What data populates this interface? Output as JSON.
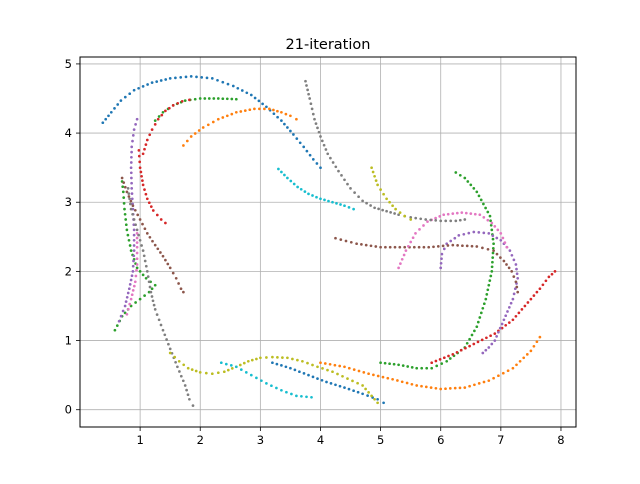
{
  "chart_data": {
    "type": "scatter",
    "title": "21-iteration",
    "xlabel": "",
    "ylabel": "",
    "xlim": [
      0.0,
      8.25
    ],
    "ylim": [
      -0.25,
      5.1
    ],
    "xticks": [
      1,
      2,
      3,
      4,
      5,
      6,
      7,
      8
    ],
    "yticks": [
      0,
      1,
      2,
      3,
      4,
      5
    ],
    "grid": true,
    "legend": "none",
    "marker_size": 2.2,
    "series": [
      {
        "color": "#1f77b4",
        "points": [
          [
            0.38,
            4.15
          ],
          [
            0.52,
            4.3
          ],
          [
            0.68,
            4.47
          ],
          [
            0.9,
            4.62
          ],
          [
            1.2,
            4.73
          ],
          [
            1.5,
            4.79
          ],
          [
            1.85,
            4.82
          ],
          [
            2.2,
            4.79
          ],
          [
            2.55,
            4.68
          ],
          [
            2.85,
            4.55
          ],
          [
            3.1,
            4.38
          ],
          [
            3.35,
            4.18
          ],
          [
            3.55,
            3.98
          ],
          [
            3.72,
            3.8
          ],
          [
            3.88,
            3.62
          ],
          [
            4.0,
            3.5
          ]
        ]
      },
      {
        "color": "#1f77b4",
        "points": [
          [
            3.2,
            0.68
          ],
          [
            3.5,
            0.6
          ],
          [
            3.8,
            0.5
          ],
          [
            4.1,
            0.4
          ],
          [
            4.4,
            0.32
          ],
          [
            4.7,
            0.23
          ],
          [
            4.95,
            0.15
          ],
          [
            5.05,
            0.1
          ]
        ]
      },
      {
        "color": "#ff7f0e",
        "points": [
          [
            1.72,
            3.82
          ],
          [
            1.85,
            3.95
          ],
          [
            2.05,
            4.08
          ],
          [
            2.3,
            4.2
          ],
          [
            2.6,
            4.3
          ],
          [
            2.9,
            4.35
          ],
          [
            3.15,
            4.35
          ],
          [
            3.35,
            4.3
          ],
          [
            3.5,
            4.25
          ],
          [
            3.6,
            4.2
          ]
        ]
      },
      {
        "color": "#ff7f0e",
        "points": [
          [
            4.0,
            0.68
          ],
          [
            4.4,
            0.62
          ],
          [
            4.8,
            0.52
          ],
          [
            5.2,
            0.44
          ],
          [
            5.6,
            0.35
          ],
          [
            6.0,
            0.3
          ],
          [
            6.4,
            0.32
          ],
          [
            6.8,
            0.42
          ],
          [
            7.2,
            0.6
          ],
          [
            7.5,
            0.85
          ],
          [
            7.65,
            1.05
          ]
        ]
      },
      {
        "color": "#2ca02c",
        "points": [
          [
            1.25,
            4.18
          ],
          [
            1.38,
            4.3
          ],
          [
            1.55,
            4.4
          ],
          [
            1.75,
            4.47
          ],
          [
            2.0,
            4.5
          ],
          [
            2.3,
            4.5
          ],
          [
            2.6,
            4.49
          ]
        ]
      },
      {
        "color": "#2ca02c",
        "points": [
          [
            0.58,
            1.15
          ],
          [
            0.7,
            1.35
          ],
          [
            0.85,
            1.5
          ],
          [
            1.0,
            1.6
          ],
          [
            1.15,
            1.7
          ],
          [
            1.25,
            1.8
          ],
          [
            1.1,
            1.9
          ],
          [
            0.95,
            2.05
          ],
          [
            0.85,
            2.3
          ],
          [
            0.78,
            2.6
          ],
          [
            0.74,
            2.9
          ],
          [
            0.72,
            3.15
          ],
          [
            0.7,
            3.3
          ]
        ]
      },
      {
        "color": "#2ca02c",
        "points": [
          [
            5.0,
            0.68
          ],
          [
            5.3,
            0.65
          ],
          [
            5.6,
            0.6
          ],
          [
            5.85,
            0.6
          ],
          [
            6.1,
            0.7
          ],
          [
            6.4,
            0.9
          ],
          [
            6.6,
            1.2
          ],
          [
            6.75,
            1.6
          ],
          [
            6.85,
            2.0
          ],
          [
            6.88,
            2.4
          ],
          [
            6.82,
            2.8
          ],
          [
            6.6,
            3.15
          ],
          [
            6.4,
            3.35
          ],
          [
            6.25,
            3.43
          ]
        ]
      },
      {
        "color": "#d62728",
        "points": [
          [
            1.05,
            3.7
          ],
          [
            1.12,
            3.9
          ],
          [
            1.2,
            4.05
          ],
          [
            1.3,
            4.2
          ],
          [
            1.42,
            4.32
          ],
          [
            1.55,
            4.4
          ],
          [
            1.7,
            4.46
          ],
          [
            1.82,
            4.48
          ]
        ]
      },
      {
        "color": "#d62728",
        "points": [
          [
            0.98,
            3.75
          ],
          [
            1.0,
            3.5
          ],
          [
            1.05,
            3.25
          ],
          [
            1.12,
            3.05
          ],
          [
            1.22,
            2.88
          ],
          [
            1.35,
            2.75
          ],
          [
            1.42,
            2.7
          ]
        ]
      },
      {
        "color": "#d62728",
        "points": [
          [
            5.85,
            0.68
          ],
          [
            6.2,
            0.8
          ],
          [
            6.55,
            0.95
          ],
          [
            6.9,
            1.1
          ],
          [
            7.2,
            1.3
          ],
          [
            7.45,
            1.55
          ],
          [
            7.65,
            1.75
          ],
          [
            7.8,
            1.92
          ],
          [
            7.9,
            2.0
          ]
        ]
      },
      {
        "color": "#9467bd",
        "points": [
          [
            0.65,
            1.28
          ],
          [
            0.75,
            1.5
          ],
          [
            0.82,
            1.75
          ],
          [
            0.88,
            2.0
          ],
          [
            0.9,
            2.3
          ],
          [
            0.9,
            2.6
          ],
          [
            0.88,
            2.9
          ],
          [
            0.86,
            3.2
          ],
          [
            0.85,
            3.5
          ],
          [
            0.86,
            3.8
          ],
          [
            0.9,
            4.05
          ],
          [
            0.95,
            4.2
          ]
        ]
      },
      {
        "color": "#9467bd",
        "points": [
          [
            6.0,
            2.05
          ],
          [
            6.02,
            2.25
          ],
          [
            6.1,
            2.4
          ],
          [
            6.3,
            2.52
          ],
          [
            6.55,
            2.57
          ],
          [
            6.8,
            2.55
          ],
          [
            7.0,
            2.45
          ],
          [
            7.15,
            2.3
          ],
          [
            7.25,
            2.1
          ],
          [
            7.28,
            1.9
          ],
          [
            7.2,
            1.6
          ],
          [
            7.05,
            1.3
          ],
          [
            6.9,
            1.0
          ],
          [
            6.8,
            0.9
          ],
          [
            6.7,
            0.82
          ]
        ]
      },
      {
        "color": "#8c564b",
        "points": [
          [
            0.7,
            3.35
          ],
          [
            0.78,
            3.15
          ],
          [
            0.88,
            2.95
          ],
          [
            1.0,
            2.75
          ],
          [
            1.12,
            2.55
          ],
          [
            1.25,
            2.38
          ],
          [
            1.38,
            2.22
          ],
          [
            1.5,
            2.05
          ],
          [
            1.6,
            1.9
          ],
          [
            1.68,
            1.75
          ],
          [
            1.72,
            1.7
          ]
        ]
      },
      {
        "color": "#8c564b",
        "points": [
          [
            4.25,
            2.48
          ],
          [
            4.6,
            2.4
          ],
          [
            5.0,
            2.35
          ],
          [
            5.4,
            2.35
          ],
          [
            5.8,
            2.35
          ],
          [
            6.2,
            2.38
          ],
          [
            6.6,
            2.36
          ],
          [
            6.88,
            2.3
          ],
          [
            7.05,
            2.15
          ],
          [
            7.18,
            2.0
          ],
          [
            7.25,
            1.85
          ],
          [
            7.28,
            1.7
          ]
        ]
      },
      {
        "color": "#e377c2",
        "points": [
          [
            0.78,
            1.38
          ],
          [
            0.85,
            1.6
          ],
          [
            0.92,
            1.85
          ],
          [
            0.95,
            2.1
          ],
          [
            0.95,
            2.35
          ],
          [
            0.95,
            2.55
          ]
        ]
      },
      {
        "color": "#e377c2",
        "points": [
          [
            5.3,
            2.05
          ],
          [
            5.42,
            2.3
          ],
          [
            5.58,
            2.55
          ],
          [
            5.78,
            2.72
          ],
          [
            6.05,
            2.82
          ],
          [
            6.35,
            2.85
          ],
          [
            6.65,
            2.82
          ],
          [
            6.85,
            2.7
          ],
          [
            7.0,
            2.55
          ],
          [
            7.1,
            2.35
          ]
        ]
      },
      {
        "color": "#7f7f7f",
        "points": [
          [
            3.75,
            4.75
          ],
          [
            3.82,
            4.5
          ],
          [
            3.9,
            4.2
          ],
          [
            4.0,
            3.95
          ],
          [
            4.12,
            3.7
          ],
          [
            4.3,
            3.45
          ],
          [
            4.5,
            3.2
          ],
          [
            4.7,
            3.02
          ],
          [
            4.9,
            2.92
          ],
          [
            5.1,
            2.87
          ],
          [
            5.3,
            2.82
          ],
          [
            5.5,
            2.78
          ],
          [
            5.75,
            2.75
          ],
          [
            6.0,
            2.73
          ],
          [
            6.25,
            2.73
          ],
          [
            6.4,
            2.75
          ]
        ]
      },
      {
        "color": "#7f7f7f",
        "points": [
          [
            0.8,
            3.2
          ],
          [
            0.85,
            2.9
          ],
          [
            0.95,
            2.6
          ],
          [
            1.05,
            2.3
          ],
          [
            1.12,
            2.0
          ],
          [
            1.18,
            1.7
          ],
          [
            1.25,
            1.45
          ],
          [
            1.38,
            1.15
          ],
          [
            1.5,
            0.88
          ],
          [
            1.62,
            0.62
          ],
          [
            1.75,
            0.35
          ],
          [
            1.82,
            0.15
          ],
          [
            1.88,
            0.06
          ]
        ]
      },
      {
        "color": "#bcbd22",
        "points": [
          [
            4.85,
            3.5
          ],
          [
            4.95,
            3.25
          ],
          [
            5.1,
            3.05
          ],
          [
            5.25,
            2.9
          ],
          [
            5.4,
            2.8
          ],
          [
            5.5,
            2.75
          ]
        ]
      },
      {
        "color": "#bcbd22",
        "points": [
          [
            1.5,
            0.82
          ],
          [
            1.65,
            0.7
          ],
          [
            1.8,
            0.6
          ],
          [
            2.0,
            0.54
          ],
          [
            2.2,
            0.52
          ],
          [
            2.4,
            0.55
          ],
          [
            2.6,
            0.62
          ],
          [
            2.8,
            0.7
          ],
          [
            3.0,
            0.75
          ],
          [
            3.2,
            0.76
          ],
          [
            3.45,
            0.75
          ],
          [
            3.7,
            0.7
          ],
          [
            3.95,
            0.62
          ],
          [
            4.2,
            0.55
          ],
          [
            4.45,
            0.45
          ],
          [
            4.7,
            0.35
          ],
          [
            4.85,
            0.2
          ],
          [
            4.95,
            0.1
          ]
        ]
      },
      {
        "color": "#17becf",
        "points": [
          [
            3.3,
            3.48
          ],
          [
            3.45,
            3.35
          ],
          [
            3.62,
            3.22
          ],
          [
            3.8,
            3.12
          ],
          [
            4.0,
            3.05
          ],
          [
            4.2,
            3.0
          ],
          [
            4.4,
            2.95
          ],
          [
            4.55,
            2.9
          ]
        ]
      },
      {
        "color": "#17becf",
        "points": [
          [
            2.35,
            0.68
          ],
          [
            2.6,
            0.62
          ],
          [
            2.85,
            0.5
          ],
          [
            3.1,
            0.38
          ],
          [
            3.35,
            0.28
          ],
          [
            3.6,
            0.2
          ],
          [
            3.85,
            0.18
          ]
        ]
      }
    ]
  }
}
